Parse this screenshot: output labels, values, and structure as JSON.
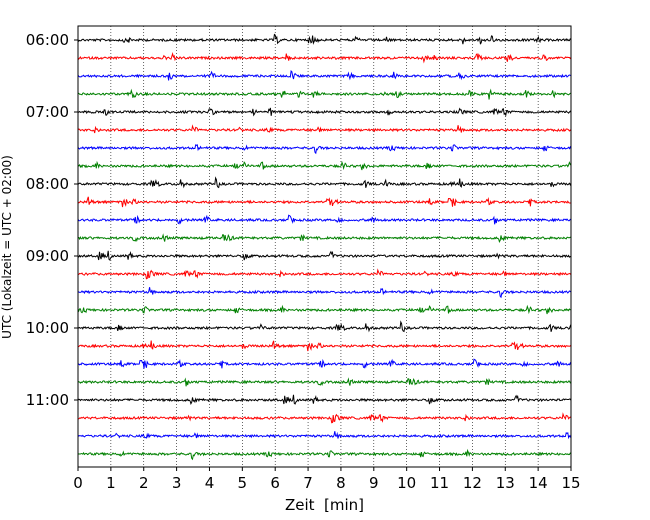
{
  "chart_data": {
    "type": "line",
    "title": "",
    "xlabel": "Zeit  [min]",
    "ylabel": "UTC (Lokalzeit = UTC + 02:00)",
    "xlim": [
      0,
      15
    ],
    "x_ticks": [
      "0",
      "1",
      "2",
      "3",
      "4",
      "5",
      "6",
      "7",
      "8",
      "9",
      "10",
      "11",
      "12",
      "13",
      "14",
      "15"
    ],
    "y_ticks": [
      "06:00",
      "07:00",
      "08:00",
      "09:00",
      "10:00",
      "11:00"
    ],
    "y_tick_rows": [
      0,
      4,
      8,
      12,
      16,
      20
    ],
    "row_count": 24,
    "row_minutes": 15,
    "grid": {
      "vertical": true,
      "style": "dotted"
    },
    "series_colors": [
      "#000000",
      "#ff0000",
      "#0000ff",
      "#008000"
    ]
  }
}
